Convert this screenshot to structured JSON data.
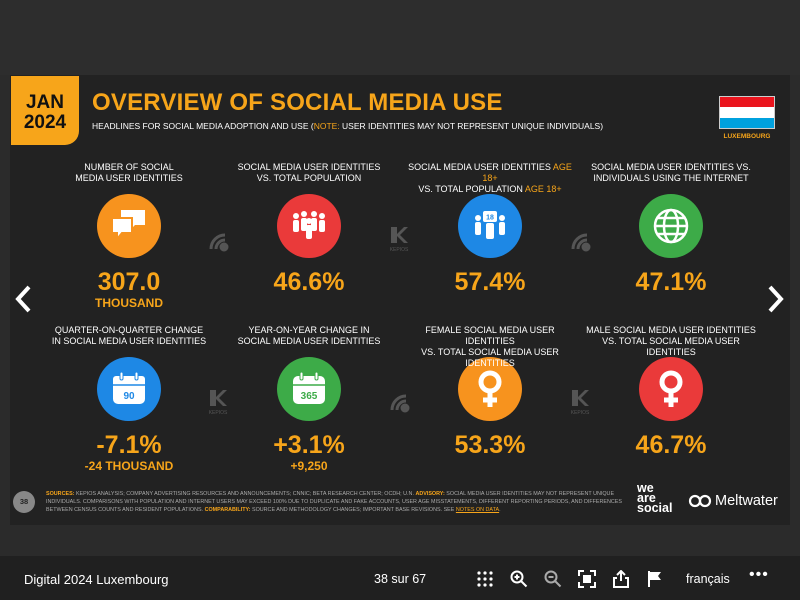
{
  "slide": {
    "date_month": "JAN",
    "date_year": "2024",
    "title": "OVERVIEW OF SOCIAL MEDIA USE",
    "subtitle_pre": "HEADLINES FOR SOCIAL MEDIA ADOPTION AND USE (",
    "subtitle_note": "NOTE:",
    "subtitle_post": " USER IDENTITIES MAY NOT REPRESENT UNIQUE INDIVIDUALS)",
    "country": "LUXEMBOURG",
    "flag_colors": [
      "#ea141d",
      "#ffffff",
      "#00a1de"
    ],
    "row1": [
      {
        "label_a": "NUMBER OF SOCIAL",
        "label_b": "MEDIA USER IDENTITIES",
        "icon": "speech-bubbles-icon",
        "color": "orange",
        "value": "307.0",
        "sub": "THOUSAND"
      },
      {
        "label_a": "SOCIAL MEDIA USER IDENTITIES",
        "label_b": "vs. TOTAL POPULATION",
        "icon": "people-group-icon",
        "color": "red",
        "value": "46.6%",
        "sub": ""
      },
      {
        "label_a": "SOCIAL MEDIA USER IDENTITIES",
        "label_a_hl": " AGE 18+",
        "label_b": "vs. TOTAL POPULATION",
        "label_b_hl": " AGE 18+",
        "icon": "people-18-icon",
        "color": "blue",
        "value": "57.4%",
        "sub": ""
      },
      {
        "label_a": "SOCIAL MEDIA USER IDENTITIES vs.",
        "label_b": "INDIVIDUALS USING THE INTERNET",
        "icon": "globe-icon",
        "color": "green",
        "value": "47.1%",
        "sub": ""
      }
    ],
    "row2": [
      {
        "label_a": "QUARTER-ON-QUARTER CHANGE",
        "label_b": "IN SOCIAL MEDIA USER IDENTITIES",
        "icon": "calendar-90-icon",
        "calendar_text": "90",
        "color": "blue",
        "value": "-7.1%",
        "sub": "-24 THOUSAND"
      },
      {
        "label_a": "YEAR-ON-YEAR CHANGE IN",
        "label_b": "SOCIAL MEDIA USER IDENTITIES",
        "icon": "calendar-365-icon",
        "calendar_text": "365",
        "color": "green",
        "value": "+3.1%",
        "sub": "+9,250"
      },
      {
        "label_a": "FEMALE SOCIAL MEDIA USER IDENTITIES",
        "label_b": "vs. TOTAL SOCIAL MEDIA USER IDENTITIES",
        "icon": "female-symbol-icon",
        "color": "orange",
        "value": "53.3%",
        "sub": ""
      },
      {
        "label_a": "MALE SOCIAL MEDIA USER IDENTITIES",
        "label_b": "vs. TOTAL SOCIAL MEDIA USER IDENTITIES",
        "icon": "female-symbol-icon",
        "color": "red",
        "value": "46.7%",
        "sub": ""
      }
    ],
    "watermark_text": "KEPIOS",
    "page_number": "38",
    "footer": {
      "sources_label": "SOURCES:",
      "sources_text": " KEPIOS ANALYSIS; COMPANY ADVERTISING RESOURCES AND ANNOUNCEMENTS; CNNIC; BETA RESEARCH CENTER; OCDH; U.N. ",
      "advisory_label": "ADVISORY:",
      "advisory_text": " SOCIAL MEDIA USER IDENTITIES MAY NOT REPRESENT UNIQUE INDIVIDUALS. COMPARISONS WITH POPULATION AND INTERNET USERS MAY EXCEED 100% DUE TO DUPLICATE AND FAKE ACCOUNTS, USER AGE MISSTATEMENTS, DIFFERENT REPORTING PERIODS, AND DIFFERENCES BETWEEN CENSUS COUNTS AND RESIDENT POPULATIONS. ",
      "comparability_label": "COMPARABILITY:",
      "comparability_text": " SOURCE AND METHODOLOGY CHANGES; IMPORTANT BASE REVISIONS. SEE ",
      "link_text": "NOTES ON DATA",
      "end_text": "."
    },
    "brand_was": [
      "we",
      "are",
      "social"
    ],
    "brand_mw": "Meltwater"
  },
  "viewer": {
    "doc_title": "Digital 2024 Luxembourg",
    "page_count": "38 sur 67",
    "language": "français",
    "more": "•••"
  }
}
